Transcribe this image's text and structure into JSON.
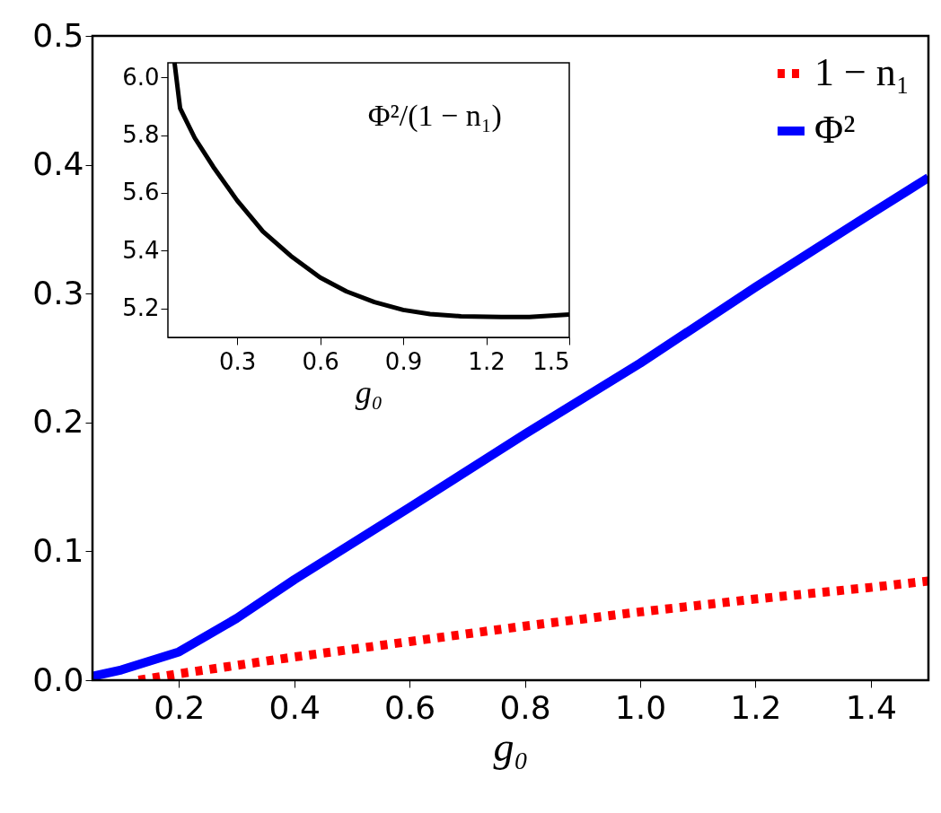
{
  "chart_data": [
    {
      "type": "line",
      "xlabel": "g₀",
      "xlim": [
        0.05,
        1.5
      ],
      "ylim": [
        0.0,
        0.5
      ],
      "xticks": [
        0.2,
        0.4,
        0.6,
        0.8,
        {
          "value": 1,
          "label": "1.0"
        },
        1.2,
        1.4
      ],
      "yticks": [
        {
          "value": 0,
          "label": "0.0"
        },
        0.1,
        0.2,
        0.3,
        0.4,
        0.5
      ],
      "grid": false,
      "legend": "top right",
      "marker": "none",
      "series": [
        {
          "name": "1 − n₁",
          "color": "#ff0000",
          "line_style": "dotted",
          "x": [
            0.13,
            0.2,
            0.4,
            0.6,
            0.8,
            1.0,
            1.2,
            1.4,
            1.5
          ],
          "values": [
            0.0,
            0.005,
            0.018,
            0.03,
            0.042,
            0.053,
            0.063,
            0.072,
            0.077
          ]
        },
        {
          "name": "Φ²",
          "color": "#0000ff",
          "line_style": "solid",
          "x": [
            0.05,
            0.1,
            0.2,
            0.3,
            0.4,
            0.6,
            0.8,
            1.0,
            1.2,
            1.4,
            1.5
          ],
          "values": [
            0.003,
            0.008,
            0.022,
            0.048,
            0.078,
            0.134,
            0.191,
            0.246,
            0.305,
            0.362,
            0.39
          ]
        }
      ]
    },
    {
      "type": "line",
      "xlabel": "g₀",
      "xlim": [
        0.05,
        1.5
      ],
      "ylim": [
        5.1,
        6.05
      ],
      "xticks": [
        0.3,
        0.6,
        0.9,
        1.2,
        1.5
      ],
      "yticks": [
        5.2,
        5.4,
        5.6,
        5.8,
        {
          "value": 6,
          "label": "6.0"
        }
      ],
      "grid": false,
      "legend": false,
      "marker": "none",
      "annotations": [
        "Φ²/(1 − n₁)"
      ],
      "series": [
        {
          "color": "#000000",
          "line_style": "solid",
          "x": [
            0.074,
            0.094,
            0.147,
            0.214,
            0.3,
            0.393,
            0.494,
            0.6,
            0.695,
            0.796,
            0.9,
            0.997,
            1.109,
            1.255,
            1.356,
            1.5
          ],
          "values": [
            6.05,
            5.893,
            5.79,
            5.69,
            5.574,
            5.467,
            5.382,
            5.307,
            5.259,
            5.222,
            5.195,
            5.181,
            5.173,
            5.171,
            5.171,
            5.179
          ]
        }
      ]
    }
  ]
}
